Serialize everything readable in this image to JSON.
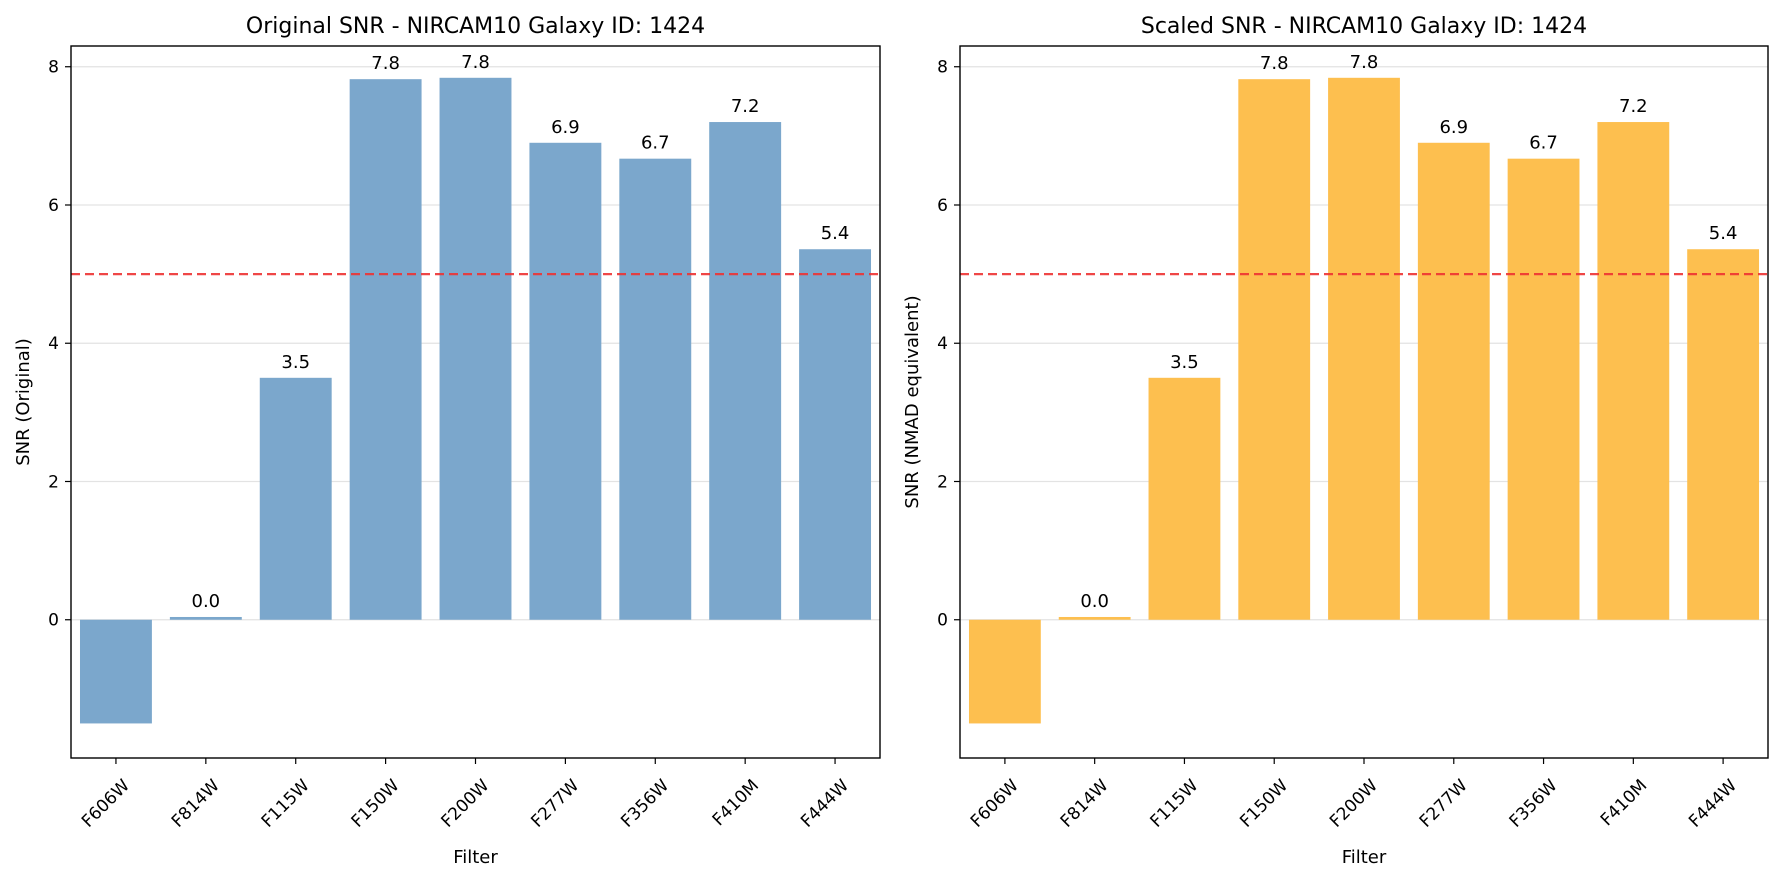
{
  "chart_data": [
    {
      "type": "bar",
      "title": "Original SNR - NIRCAM10 Galaxy ID: 1424",
      "xlabel": "Filter",
      "ylabel": "SNR (Original)",
      "categories": [
        "F606W",
        "F814W",
        "F115W",
        "F150W",
        "F200W",
        "F277W",
        "F356W",
        "F410M",
        "F444W"
      ],
      "values": [
        -1.5,
        0.04,
        3.5,
        7.82,
        7.84,
        6.9,
        6.67,
        7.2,
        5.36
      ],
      "value_labels": [
        "",
        "0.0",
        "3.5",
        "7.8",
        "7.8",
        "6.9",
        "6.7",
        "7.2",
        "5.4"
      ],
      "yticks": [
        "0",
        "2",
        "4",
        "6",
        "8"
      ],
      "ylim": [
        -2.0,
        8.3
      ],
      "threshold": 5,
      "grid": "y",
      "bar_color": "#7ba7cc",
      "threshold_color": "#ee3333"
    },
    {
      "type": "bar",
      "title": "Scaled SNR - NIRCAM10 Galaxy ID: 1424",
      "xlabel": "Filter",
      "ylabel": "SNR (NMAD equivalent)",
      "categories": [
        "F606W",
        "F814W",
        "F115W",
        "F150W",
        "F200W",
        "F277W",
        "F356W",
        "F410M",
        "F444W"
      ],
      "values": [
        -1.5,
        0.04,
        3.5,
        7.82,
        7.84,
        6.9,
        6.67,
        7.2,
        5.36
      ],
      "value_labels": [
        "",
        "0.0",
        "3.5",
        "7.8",
        "7.8",
        "6.9",
        "6.7",
        "7.2",
        "5.4"
      ],
      "yticks": [
        "0",
        "2",
        "4",
        "6",
        "8"
      ],
      "ylim": [
        -2.0,
        8.3
      ],
      "threshold": 5,
      "grid": "y",
      "bar_color": "#fdbf4f",
      "threshold_color": "#ee3333"
    }
  ]
}
